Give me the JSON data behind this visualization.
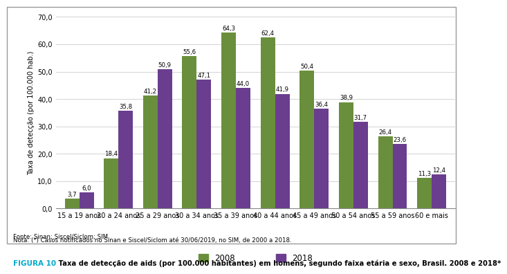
{
  "categories": [
    "15 a 19 anos",
    "20 a 24 anos",
    "25 a 29 anos",
    "30 a 34 anos",
    "35 a 39 anos",
    "40 a 44 anos",
    "45 a 49 anos",
    "50 a 54 anos",
    "55 a 59 anos",
    "60 e mais"
  ],
  "values_2008": [
    3.7,
    18.4,
    41.2,
    55.6,
    64.3,
    62.4,
    50.4,
    38.9,
    26.4,
    11.3
  ],
  "values_2018": [
    6.0,
    35.8,
    50.9,
    47.1,
    44.0,
    41.9,
    36.4,
    31.7,
    23.6,
    12.4
  ],
  "color_2008": "#6a8f3c",
  "color_2018": "#6a3d8f",
  "ylabel": "Taxa de detecção (por 100.000 hab.)",
  "ylim": [
    0,
    70
  ],
  "yticks": [
    0.0,
    10.0,
    20.0,
    30.0,
    40.0,
    50.0,
    60.0,
    70.0
  ],
  "legend_2008": "2008",
  "legend_2018": "2018",
  "source_line1": "Fonte: Sinan; Siscel/Siclom; SIM.",
  "source_line2": "Nota: (*) Casos notificados no Sinan e Siscel/Siclom até 30/06/2019, no SIM, de 2000 a 2018.",
  "figure_label": "FIGURA 10",
  "figure_caption": " Taxa de detecção de aids (por 100.000 habitantes) em homens, segundo faixa etária e sexo, Brasil. 2008 e 2018*",
  "label_fontsize": 7.0,
  "bar_label_fontsize": 6.2,
  "tick_fontsize": 7.0,
  "background_color": "#ffffff",
  "border_color": "#999999",
  "caption_color": "#00aacc"
}
